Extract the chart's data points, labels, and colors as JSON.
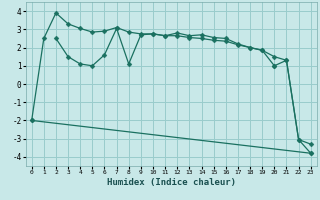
{
  "xlabel": "Humidex (Indice chaleur)",
  "xlim": [
    -0.5,
    23.5
  ],
  "ylim": [
    -4.5,
    4.5
  ],
  "xticks": [
    0,
    1,
    2,
    3,
    4,
    5,
    6,
    7,
    8,
    9,
    10,
    11,
    12,
    13,
    14,
    15,
    16,
    17,
    18,
    19,
    20,
    21,
    22,
    23
  ],
  "yticks": [
    -4,
    -3,
    -2,
    -1,
    0,
    1,
    2,
    3,
    4
  ],
  "bg_color": "#c8e8e8",
  "grid_color": "#99cccc",
  "line_color": "#1a7060",
  "series": [
    {
      "x": [
        0,
        1,
        2,
        3,
        4,
        5,
        6,
        7,
        8,
        9,
        10,
        11,
        12,
        13,
        14,
        15,
        16,
        17,
        18,
        19,
        20
      ],
      "y": [
        -2,
        2.5,
        3.9,
        3.3,
        3.05,
        2.85,
        2.9,
        3.1,
        2.85,
        2.75,
        2.75,
        2.65,
        2.65,
        2.55,
        2.5,
        2.4,
        2.35,
        2.15,
        2.0,
        1.85,
        1.0
      ]
    },
    {
      "x": [
        2,
        3,
        4,
        5,
        6,
        7,
        8,
        9,
        10,
        11,
        12,
        13,
        14,
        15,
        16,
        17,
        18,
        19,
        20,
        21,
        22,
        23
      ],
      "y": [
        2.5,
        1.5,
        1.1,
        1.0,
        1.6,
        3.05,
        1.1,
        2.7,
        2.75,
        2.65,
        2.8,
        2.65,
        2.7,
        2.55,
        2.5,
        2.2,
        2.0,
        1.85,
        1.5,
        1.3,
        -3.05,
        -3.3
      ]
    },
    {
      "x": [
        0,
        23
      ],
      "y": [
        -2,
        -3.8
      ]
    },
    {
      "x": [
        20,
        21,
        22,
        23
      ],
      "y": [
        1.0,
        1.3,
        -3.05,
        -3.8
      ]
    }
  ]
}
